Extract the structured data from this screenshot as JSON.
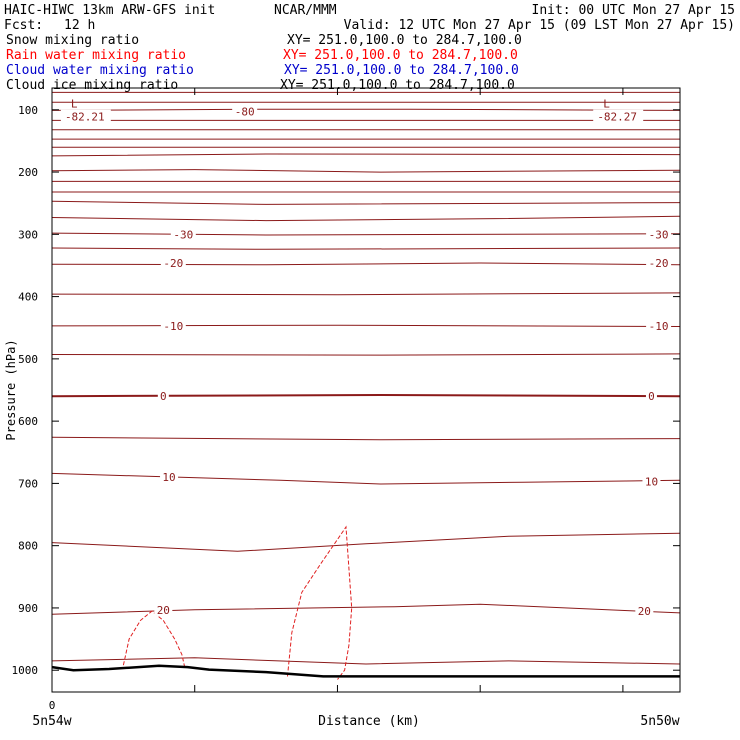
{
  "header": {
    "title_left": "HAIC-HIWC 13km ARW-GFS init",
    "org": "NCAR/MMM",
    "init": "Init: 00 UTC Mon 27 Apr 15",
    "fcst_label": "Fcst:",
    "fcst_value": "12 h",
    "valid": "Valid: 12 UTC Mon 27 Apr 15 (09 LST Mon 27 Apr 15)"
  },
  "legend": [
    {
      "label": "Snow mixing ratio",
      "xy": "XY= 251.0,100.0 to 284.7,100.0",
      "color": "#000000"
    },
    {
      "label": "Rain water mixing ratio",
      "xy": "XY= 251.0,100.0 to 284.7,100.0",
      "color": "#ff0000"
    },
    {
      "label": "Cloud water mixing ratio",
      "xy": "XY= 251.0,100.0 to 284.7,100.0",
      "color": "#0000cc"
    },
    {
      "label": "Cloud ice mixing ratio",
      "xy": "XY= 251.0,100.0 to 284.7,100.0",
      "color": "#000000"
    }
  ],
  "colors": {
    "temperature": "#8b1a1a",
    "rain": "#e02020",
    "terrain": "#000000",
    "axis": "#000000"
  },
  "chart_data": {
    "type": "line",
    "ylabel": "Pressure (hPa)",
    "xlabel": "Distance (km)",
    "x_start_label": "5n54w",
    "x_end_label": "5n50w",
    "x_zero_label": "0",
    "ylim": [
      1035,
      65
    ],
    "xlim": [
      0,
      4.4
    ],
    "yticks": [
      100,
      200,
      300,
      400,
      500,
      600,
      700,
      800,
      900,
      1000
    ],
    "ytick_labels": [
      "100",
      "200",
      "300",
      "400",
      "500",
      "600",
      "700",
      "800",
      "900",
      "1000"
    ],
    "xticks": [
      1,
      2,
      3,
      4
    ],
    "temperature_lines": [
      {
        "x": [
          0,
          4.4
        ],
        "p": [
          72,
          72
        ]
      },
      {
        "x": [
          0,
          4.4
        ],
        "p": [
          88,
          88
        ]
      },
      {
        "x": [
          0,
          1.5,
          2.5,
          4.4
        ],
        "p": [
          101,
          99,
          99,
          101
        ]
      },
      {
        "x": [
          0,
          4.4
        ],
        "p": [
          117,
          117
        ]
      },
      {
        "x": [
          0,
          4.4
        ],
        "p": [
          132,
          132
        ]
      },
      {
        "x": [
          0,
          4.4
        ],
        "p": [
          147,
          147
        ]
      },
      {
        "x": [
          0,
          4.4
        ],
        "p": [
          160,
          160
        ]
      },
      {
        "x": [
          0,
          1.5,
          4.4
        ],
        "p": [
          174,
          171,
          172
        ]
      },
      {
        "x": [
          0,
          1,
          2.3,
          4.4
        ],
        "p": [
          198,
          196,
          200,
          197
        ]
      },
      {
        "x": [
          0,
          4.4
        ],
        "p": [
          215,
          215
        ]
      },
      {
        "x": [
          0,
          4.4
        ],
        "p": [
          232,
          232
        ]
      },
      {
        "x": [
          0,
          1.5,
          4.4
        ],
        "p": [
          247,
          252,
          249
        ]
      },
      {
        "x": [
          0,
          1.5,
          3,
          4.4
        ],
        "p": [
          273,
          278,
          275,
          271
        ]
      },
      {
        "x": [
          0,
          1.5,
          4.4
        ],
        "p": [
          298,
          301,
          299
        ]
      },
      {
        "x": [
          0,
          1.5,
          4.4
        ],
        "p": [
          322,
          324,
          322
        ]
      },
      {
        "x": [
          0,
          1.5,
          3,
          4.4
        ],
        "p": [
          348,
          349,
          346,
          349
        ]
      },
      {
        "x": [
          0,
          2,
          4.4
        ],
        "p": [
          396,
          397,
          394
        ]
      },
      {
        "x": [
          0,
          2,
          4.4
        ],
        "p": [
          447,
          446,
          448
        ]
      },
      {
        "x": [
          0,
          2.3,
          4.4
        ],
        "p": [
          493,
          494,
          492
        ]
      },
      {
        "x": [
          0,
          2.3,
          4.4
        ],
        "p": [
          560,
          558,
          560
        ]
      },
      {
        "x": [
          0,
          2.3,
          4.4
        ],
        "p": [
          626,
          630,
          628
        ]
      },
      {
        "x": [
          0,
          1.6,
          2.3,
          3.3,
          4.4
        ],
        "p": [
          684,
          695,
          701,
          698,
          695
        ]
      },
      {
        "x": [
          0,
          1.3,
          2.2,
          3.2,
          4.4
        ],
        "p": [
          795,
          809,
          797,
          785,
          780
        ]
      },
      {
        "x": [
          0,
          1,
          2.4,
          3,
          4.4
        ],
        "p": [
          910,
          903,
          898,
          894,
          908
        ]
      },
      {
        "x": [
          0,
          1,
          2.2,
          3.2,
          4.4
        ],
        "p": [
          985,
          980,
          990,
          985,
          990
        ]
      }
    ],
    "temperature_labels": [
      {
        "text": "-80",
        "x": 1.35,
        "p": 103
      },
      {
        "text": "-30",
        "x": 0.92,
        "p": 300
      },
      {
        "text": "-30",
        "x": 4.25,
        "p": 300
      },
      {
        "text": "-20",
        "x": 0.85,
        "p": 346
      },
      {
        "text": "-20",
        "x": 4.25,
        "p": 346
      },
      {
        "text": "-10",
        "x": 0.85,
        "p": 447
      },
      {
        "text": "-10",
        "x": 4.25,
        "p": 447
      },
      {
        "text": "0",
        "x": 0.78,
        "p": 560
      },
      {
        "text": "0",
        "x": 4.2,
        "p": 560
      },
      {
        "text": "10",
        "x": 0.82,
        "p": 690
      },
      {
        "text": "10",
        "x": 4.2,
        "p": 697
      },
      {
        "text": "20",
        "x": 0.78,
        "p": 903
      },
      {
        "text": "20",
        "x": 4.15,
        "p": 905
      }
    ],
    "lows": [
      {
        "mark": "L",
        "value": "-82.21",
        "x": 0.23,
        "p": 95
      },
      {
        "mark": "L",
        "value": "-82.27",
        "x": 3.96,
        "p": 95
      }
    ],
    "rain_contours": [
      {
        "x": [
          0.5,
          0.54,
          0.62,
          0.7,
          0.78,
          0.86,
          0.91,
          0.93
        ],
        "p": [
          992,
          950,
          920,
          905,
          920,
          950,
          975,
          995
        ]
      },
      {
        "x": [
          1.65,
          1.68,
          1.75,
          1.88,
          2.0,
          2.06,
          2.1,
          2.08,
          2.05,
          2.0
        ],
        "p": [
          1010,
          940,
          875,
          830,
          790,
          770,
          900,
          960,
          1000,
          1015
        ]
      }
    ],
    "terrain": {
      "x": [
        0,
        0.15,
        0.4,
        0.75,
        0.95,
        1.1,
        1.5,
        1.9,
        2.5,
        4.4
      ],
      "p": [
        995,
        1000,
        998,
        993,
        995,
        999,
        1003,
        1010,
        1010,
        1010
      ]
    }
  }
}
